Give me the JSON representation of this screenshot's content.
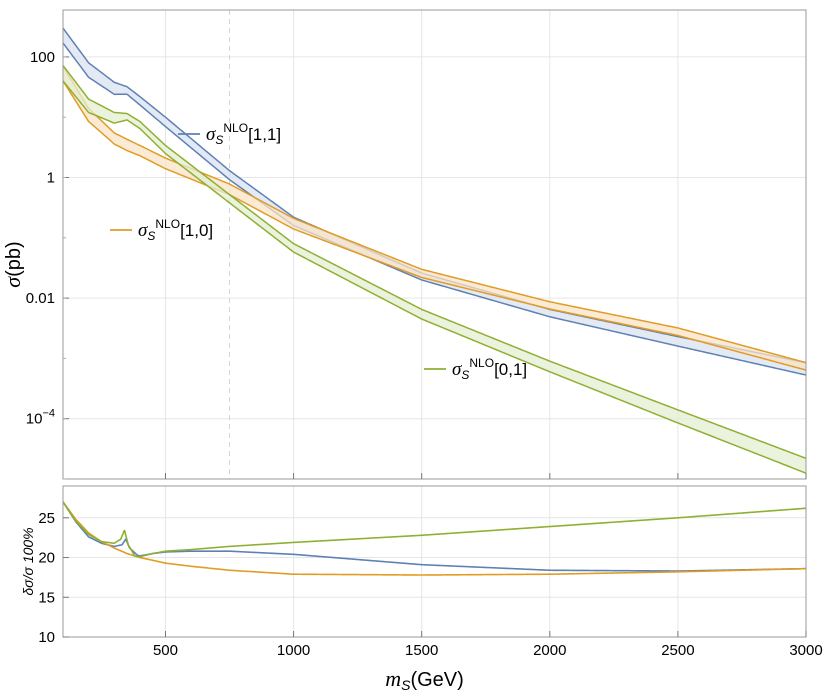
{
  "chart_data": [
    {
      "type": "area",
      "panel": "main",
      "ylabel": "σ(pb)",
      "yscale": "log",
      "xlim": [
        100,
        3000
      ],
      "ylim": [
        1e-05,
        600
      ],
      "grid": true,
      "x_ticks": [
        500,
        1000,
        1500,
        2000,
        2500,
        3000
      ],
      "y_ticks": [
        {
          "value": 100,
          "label": "100"
        },
        {
          "value": 1,
          "label": "1"
        },
        {
          "value": 0.01,
          "label": "0.01"
        },
        {
          "value": 0.0001,
          "label": "10",
          "sup": "−4"
        }
      ],
      "reference_line": {
        "x": 750,
        "style": "dashed"
      },
      "x": [
        100,
        200,
        300,
        350,
        400,
        500,
        750,
        1000,
        1500,
        2000,
        2500,
        3000
      ],
      "series": [
        {
          "name": "σ_S^NLO[1,1]",
          "label_main": "σ",
          "label_sub": "S",
          "label_sup": "NLO",
          "label_tail": "[1,1]",
          "color": "#5e81b5",
          "fill": "#dbe3f0",
          "upper": [
            300,
            80,
            38,
            32,
            22,
            10,
            1.3,
            0.22,
            0.026,
            0.0065,
            0.0023,
            0.00085
          ],
          "lower": [
            170,
            46,
            24,
            24,
            16,
            7,
            0.92,
            0.16,
            0.02,
            0.0049,
            0.0016,
            0.00053
          ]
        },
        {
          "name": "σ_S^NLO[1,0]",
          "label_main": "σ",
          "label_sub": "S",
          "label_sup": "NLO",
          "label_tail": "[1,0]",
          "color": "#e19c24",
          "fill": "#f9e3c7",
          "upper": [
            70,
            14,
            5.5,
            4.3,
            3.4,
            2.1,
            0.78,
            0.21,
            0.03,
            0.0087,
            0.0032,
            0.00085
          ],
          "lower": [
            40,
            8.5,
            3.6,
            2.8,
            2.3,
            1.4,
            0.52,
            0.14,
            0.022,
            0.0066,
            0.0024,
            0.00064
          ]
        },
        {
          "name": "σ_S^NLO[0,1]",
          "label_main": "σ",
          "label_sub": "S",
          "label_sup": "NLO",
          "label_tail": "[0,1]",
          "color": "#8fb032",
          "fill": "#e4edd1",
          "upper": [
            72,
            20,
            12,
            11.5,
            8.5,
            3.4,
            0.52,
            0.08,
            0.0065,
            0.0009,
            0.00014,
            2.2e-05
          ],
          "lower": [
            40,
            12,
            8,
            9,
            6.5,
            2.5,
            0.38,
            0.058,
            0.0045,
            0.0006,
            8.5e-05,
            1.25e-05
          ]
        }
      ]
    },
    {
      "type": "line",
      "panel": "ratio",
      "xlabel": "m_S(GeV)",
      "xlabel_main": "m",
      "xlabel_sub": "S",
      "xlabel_tail": "(GeV)",
      "ylabel": "δσ/σ 100%",
      "xlim": [
        100,
        3000
      ],
      "ylim": [
        10,
        29
      ],
      "grid": true,
      "x_ticks": [
        500,
        1000,
        1500,
        2000,
        2500,
        3000
      ],
      "y_ticks": [
        10,
        15,
        20,
        25
      ],
      "series": [
        {
          "color": "#5e81b5",
          "x": [
            100,
            150,
            200,
            250,
            300,
            330,
            345,
            360,
            390,
            400,
            450,
            500,
            600,
            750,
            1000,
            1500,
            2000,
            2500,
            3000
          ],
          "y": [
            27,
            24.5,
            22.6,
            21.8,
            21.4,
            21.6,
            22.3,
            21.2,
            20.3,
            20.2,
            20.5,
            20.7,
            20.8,
            20.8,
            20.4,
            19.1,
            18.4,
            18.3,
            18.6
          ]
        },
        {
          "color": "#e19c24",
          "x": [
            100,
            150,
            200,
            250,
            300,
            350,
            400,
            500,
            600,
            750,
            1000,
            1500,
            2000,
            2500,
            3000
          ],
          "y": [
            27,
            24.8,
            23.1,
            22,
            21.2,
            20.5,
            20,
            19.3,
            18.9,
            18.4,
            17.9,
            17.8,
            17.9,
            18.2,
            18.6
          ]
        },
        {
          "color": "#8fb032",
          "x": [
            100,
            150,
            200,
            250,
            300,
            325,
            340,
            355,
            380,
            400,
            450,
            500,
            600,
            750,
            1000,
            1500,
            2000,
            2500,
            3000
          ],
          "y": [
            27,
            24.6,
            22.9,
            22,
            21.8,
            22.3,
            23.4,
            21.6,
            20.2,
            20.1,
            20.5,
            20.8,
            21,
            21.4,
            21.9,
            22.8,
            23.9,
            25,
            26.2
          ]
        }
      ]
    }
  ]
}
